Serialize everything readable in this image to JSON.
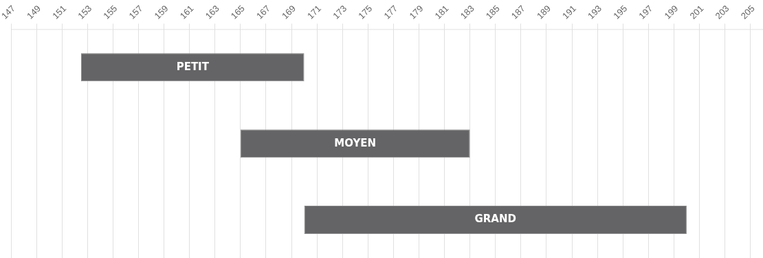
{
  "chart_data": {
    "type": "bar",
    "orientation": "horizontal",
    "categories": [
      "PETIT",
      "MOYEN",
      "GRAND"
    ],
    "base": [
      152.5,
      165,
      170
    ],
    "values": [
      17.5,
      18,
      30
    ],
    "color": "#646466",
    "xlim": [
      147,
      205
    ],
    "xticks": [
      147,
      149,
      151,
      153,
      155,
      157,
      159,
      161,
      163,
      165,
      167,
      169,
      171,
      173,
      175,
      177,
      179,
      181,
      183,
      185,
      187,
      189,
      191,
      193,
      195,
      197,
      199,
      201,
      203,
      205
    ],
    "grid": "x"
  }
}
